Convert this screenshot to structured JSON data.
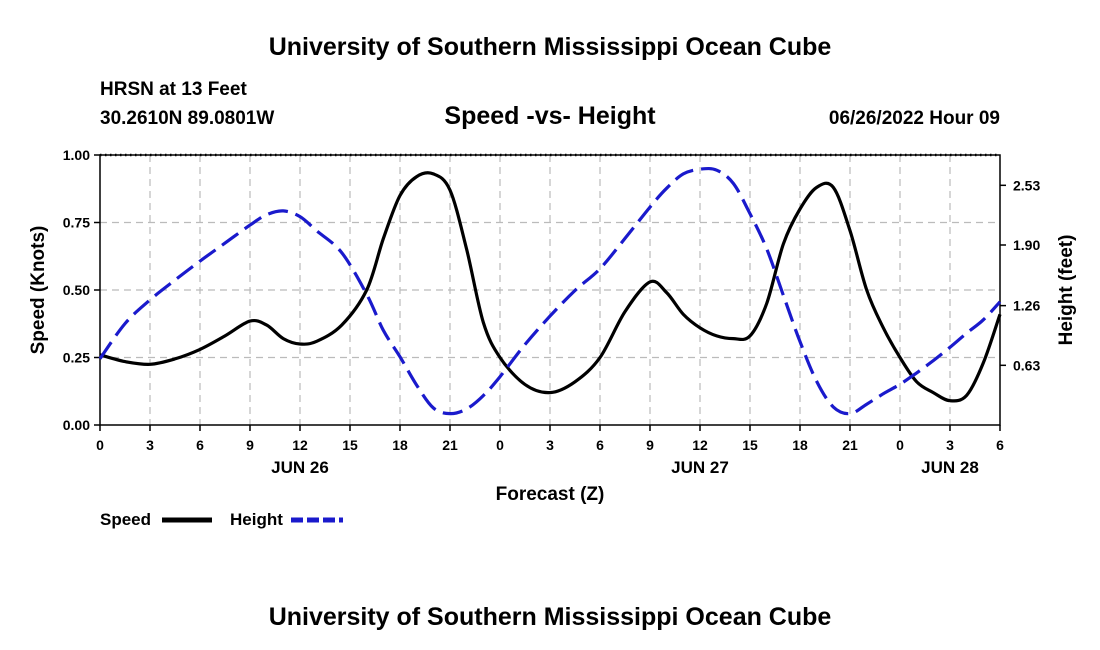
{
  "header": {
    "title": "University of Southern Mississippi Ocean Cube",
    "station": "HRSN at 13 Feet",
    "coords": "30.2610N  89.0801W",
    "datetime": "06/26/2022 Hour 09",
    "footer_title": "University of Southern Mississippi Ocean Cube"
  },
  "colors": {
    "speed": "#000000",
    "height": "#1a1acc",
    "grid": "#bbbbbb"
  },
  "chart_data": {
    "type": "line",
    "title": "Speed -vs- Height",
    "xlabel": "Forecast (Z)",
    "ylabel": "Speed (Knots)",
    "y2label": "Height (feet)",
    "xlim": [
      0,
      54
    ],
    "ylim": [
      0,
      1
    ],
    "y2lim": [
      0,
      2.85
    ],
    "xticks": [
      0,
      3,
      6,
      9,
      12,
      15,
      18,
      21,
      24,
      27,
      30,
      33,
      36,
      39,
      42,
      45,
      48,
      51,
      54
    ],
    "xtick_labels": [
      "0",
      "3",
      "6",
      "9",
      "12",
      "15",
      "18",
      "21",
      "0",
      "3",
      "6",
      "9",
      "12",
      "15",
      "18",
      "21",
      "0",
      "3",
      "6"
    ],
    "yticks": [
      0,
      0.25,
      0.5,
      0.75,
      1.0
    ],
    "ytick_labels": [
      "0.00",
      "0.25",
      "0.50",
      "0.75",
      "1.00"
    ],
    "y2ticks": [
      0.63,
      1.26,
      1.9,
      2.53
    ],
    "y2tick_labels": [
      "0.63",
      "1.26",
      "1.90",
      "2.53"
    ],
    "date_labels": [
      {
        "x": 12,
        "label": "JUN 26"
      },
      {
        "x": 36,
        "label": "JUN 27"
      },
      {
        "x": 51,
        "label": "JUN 28"
      }
    ],
    "legend": [
      "Speed",
      "Height"
    ],
    "series": [
      {
        "name": "Speed",
        "axis": "left",
        "style": "solid",
        "x": [
          0,
          1.5,
          3,
          4.5,
          6,
          7.5,
          9,
          10,
          11,
          12,
          13,
          14.5,
          16,
          17,
          18,
          19,
          20,
          21,
          22,
          23,
          24,
          25.5,
          27,
          28.5,
          30,
          31.5,
          33,
          34,
          35,
          36,
          37,
          38,
          39,
          40,
          41,
          42,
          43,
          44,
          45,
          46,
          47,
          48,
          49,
          50,
          51,
          52,
          53,
          54
        ],
        "y": [
          0.26,
          0.235,
          0.225,
          0.245,
          0.28,
          0.33,
          0.385,
          0.37,
          0.32,
          0.3,
          0.31,
          0.37,
          0.5,
          0.69,
          0.85,
          0.92,
          0.93,
          0.87,
          0.65,
          0.38,
          0.25,
          0.15,
          0.12,
          0.16,
          0.25,
          0.42,
          0.53,
          0.49,
          0.41,
          0.36,
          0.33,
          0.32,
          0.33,
          0.45,
          0.67,
          0.8,
          0.88,
          0.88,
          0.72,
          0.5,
          0.36,
          0.25,
          0.16,
          0.12,
          0.09,
          0.11,
          0.23,
          0.41
        ]
      },
      {
        "name": "Height",
        "axis": "right",
        "style": "dashed",
        "x": [
          0,
          1.5,
          3,
          4.5,
          6,
          7.5,
          9,
          10,
          11,
          12,
          13,
          14.5,
          16,
          17,
          18,
          19,
          20,
          21,
          22,
          23,
          24,
          25.5,
          27,
          28.5,
          30,
          31.5,
          33,
          34,
          35,
          36,
          37,
          38,
          39,
          40,
          41,
          42,
          43,
          44,
          45,
          46,
          47,
          48,
          49,
          50,
          51,
          52,
          53,
          54
        ],
        "y": [
          0.7,
          1.07,
          1.32,
          1.53,
          1.73,
          1.92,
          2.11,
          2.22,
          2.26,
          2.2,
          2.05,
          1.82,
          1.38,
          1.0,
          0.72,
          0.42,
          0.18,
          0.12,
          0.17,
          0.31,
          0.51,
          0.85,
          1.15,
          1.42,
          1.65,
          1.97,
          2.3,
          2.5,
          2.65,
          2.7,
          2.69,
          2.55,
          2.23,
          1.86,
          1.37,
          0.88,
          0.46,
          0.19,
          0.12,
          0.22,
          0.33,
          0.43,
          0.55,
          0.68,
          0.82,
          0.97,
          1.11,
          1.3
        ]
      }
    ]
  }
}
